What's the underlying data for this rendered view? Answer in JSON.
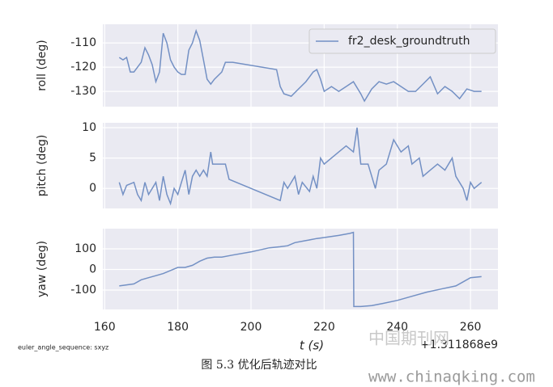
{
  "chart_data": [
    {
      "type": "line",
      "ylabel": "roll (deg)",
      "ylim": [
        -136.3,
        -102.3
      ],
      "yticks": [
        -110,
        -120,
        -130
      ],
      "grid": true,
      "legend": "upper right",
      "x": [
        164,
        165,
        166,
        167,
        168,
        170,
        171,
        172,
        173,
        174,
        175,
        176,
        177,
        178,
        179,
        180,
        181,
        182,
        183,
        184,
        185,
        186,
        187,
        188,
        189,
        190,
        192,
        193,
        195,
        207,
        208,
        209,
        211,
        213,
        215,
        217,
        218,
        219,
        220,
        222,
        224,
        226,
        228,
        230,
        231,
        233,
        235,
        237,
        239,
        241,
        243,
        245,
        247,
        249,
        251,
        253,
        255,
        257,
        259,
        261,
        263
      ],
      "series": [
        {
          "name": "fr2_desk_groundtruth",
          "color": "#7390c4",
          "values": [
            -116,
            -117,
            -116,
            -122,
            -122,
            -118,
            -112,
            -115,
            -119,
            -126,
            -122,
            -106,
            -110,
            -117,
            -120,
            -122,
            -123,
            -123,
            -113,
            -110,
            -105,
            -109,
            -117,
            -125,
            -127,
            -125,
            -122,
            -118,
            -118,
            -121,
            -128,
            -131,
            -132,
            -129,
            -126,
            -122,
            -121,
            -125,
            -130,
            -128,
            -130,
            -128,
            -126,
            -131,
            -134,
            -129,
            -126,
            -127,
            -126,
            -128,
            -130,
            -130,
            -127,
            -124,
            -131,
            -128,
            -130,
            -133,
            -129,
            -130,
            -130
          ]
        }
      ]
    },
    {
      "type": "line",
      "ylabel": "pitch (deg)",
      "ylim": [
        -3.3,
        10.8
      ],
      "yticks": [
        10,
        5,
        0
      ],
      "grid": true,
      "color": "#7390c4",
      "x": [
        164,
        165,
        166,
        168,
        169,
        170,
        171,
        172,
        173,
        174,
        175,
        176,
        177,
        178,
        179,
        180,
        181,
        182,
        183,
        184,
        185,
        186,
        187,
        188,
        189,
        189.5,
        193,
        194,
        196,
        208,
        209,
        210,
        212,
        213,
        214,
        216,
        217,
        218,
        219,
        220,
        222,
        224,
        226,
        228,
        229,
        230,
        232,
        234,
        235,
        237,
        239,
        241,
        243,
        244,
        246,
        247,
        249,
        251,
        253,
        255,
        256,
        258,
        259,
        260,
        261,
        263
      ],
      "values": [
        1,
        -1,
        0.5,
        1,
        -1,
        -2,
        1,
        -1,
        0,
        1,
        -2,
        2,
        -1,
        -2.5,
        0,
        -1,
        1,
        3,
        -1,
        2,
        3,
        2,
        3,
        2,
        6,
        4,
        4,
        1.5,
        1,
        -2,
        1,
        0,
        2,
        -1,
        1,
        -0.5,
        2,
        0,
        5,
        4,
        5,
        6,
        7,
        6,
        10,
        4,
        4,
        0,
        3,
        4,
        8,
        6,
        7,
        4,
        5,
        2,
        3,
        4,
        3,
        5,
        2,
        0,
        -2,
        1,
        0,
        1
      ]
    },
    {
      "type": "line",
      "ylabel": "yaw (deg)",
      "xlabel": "t (s)",
      "x_offset_label": "+1.311868e9",
      "ylim": [
        -194,
        198
      ],
      "yticks": [
        100,
        0,
        -100
      ],
      "grid": true,
      "color": "#7390c4",
      "xlim": [
        159.5,
        267.5
      ],
      "xticks": [
        160,
        180,
        200,
        220,
        240,
        260
      ],
      "x": [
        164,
        166,
        168,
        170,
        172,
        174,
        176,
        178,
        180,
        182,
        184,
        186,
        188,
        190,
        192,
        195,
        200,
        205,
        208,
        210,
        212,
        215,
        218,
        220,
        224,
        227,
        228,
        228.1,
        230,
        233,
        236,
        240,
        244,
        248,
        252,
        256,
        258,
        260,
        263
      ],
      "values": [
        -80,
        -75,
        -70,
        -50,
        -40,
        -30,
        -20,
        -5,
        10,
        10,
        20,
        40,
        55,
        60,
        60,
        70,
        85,
        105,
        110,
        115,
        130,
        140,
        150,
        155,
        165,
        175,
        180,
        -180,
        -180,
        -175,
        -165,
        -150,
        -130,
        -110,
        -95,
        -80,
        -60,
        -40,
        -35
      ]
    }
  ],
  "footnote": "euler_angle_sequence: sxyz",
  "caption": "图 5.3 优化后轨迹对比",
  "watermark": {
    "cn": "中国期刊网",
    "url": "www.chinaqking.com"
  }
}
